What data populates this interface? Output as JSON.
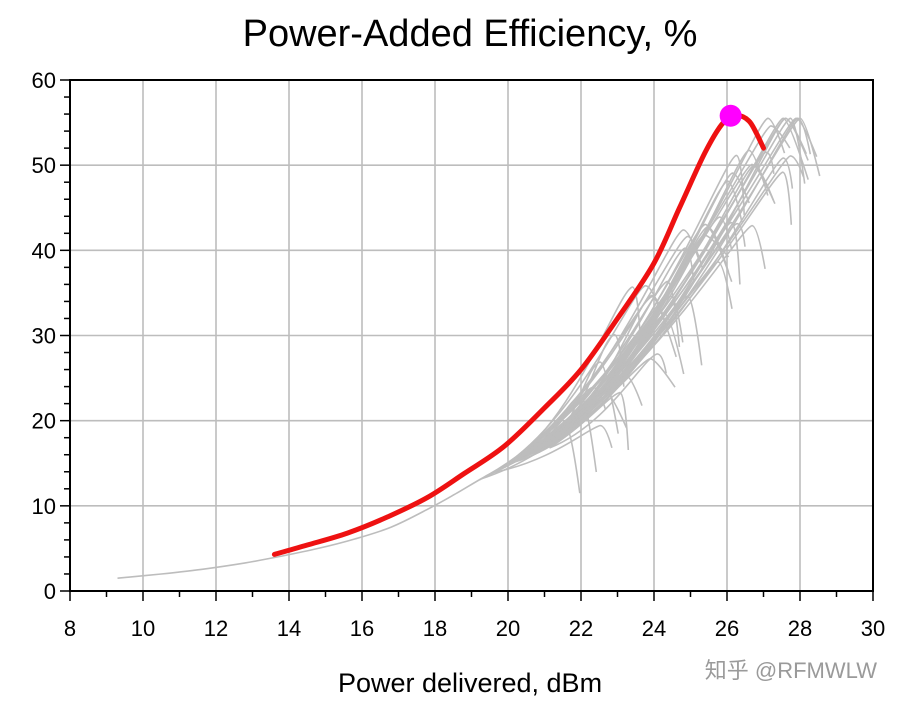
{
  "chart_data": {
    "type": "line",
    "title": "Power-Added Efficiency, %",
    "xlabel": "Power delivered, dBm",
    "ylabel": "",
    "xlim": [
      8,
      30
    ],
    "ylim": [
      0,
      60
    ],
    "x_ticks": [
      "8",
      "10",
      "12",
      "14",
      "16",
      "18",
      "20",
      "22",
      "24",
      "26",
      "28",
      "30"
    ],
    "y_ticks": [
      "0",
      "10",
      "20",
      "30",
      "40",
      "50",
      "60"
    ],
    "grid": true,
    "colors": {
      "sweep": "#bdbdbd",
      "highlight": "#ee1111",
      "marker": "#ff00ff"
    },
    "main_series": {
      "x": [
        13.6,
        14.5,
        15.6,
        16.7,
        17.8,
        18.8,
        19.9,
        21.0,
        22.0,
        23.0,
        24.0,
        24.7,
        25.4,
        25.9,
        26.3,
        26.6,
        26.8,
        27.0
      ],
      "y": [
        4.3,
        5.4,
        6.8,
        8.7,
        11.0,
        13.8,
        17.0,
        21.5,
        26.0,
        32.0,
        38.5,
        45.0,
        51.5,
        55.0,
        55.8,
        55.2,
        53.8,
        52.0
      ]
    },
    "marker": {
      "x": 26.1,
      "y": 55.8
    },
    "envelope_series": {
      "x": [
        9.3,
        10.5,
        11.7,
        12.8,
        13.8,
        14.8,
        15.8,
        16.8,
        17.8,
        18.6,
        19.4,
        20.2,
        21.0
      ],
      "y": [
        1.5,
        2.0,
        2.6,
        3.3,
        4.1,
        5.0,
        6.1,
        7.5,
        9.6,
        11.5,
        13.5,
        15.2,
        16.8
      ]
    },
    "sweep_family": {
      "count": 50,
      "start_x_range": [
        19.2,
        21.2
      ],
      "peak_x_range": [
        21.3,
        28.2
      ],
      "peak_y_range": [
        17.0,
        56.0
      ],
      "peak_y_spread": [
        -5.0,
        7.0
      ]
    }
  },
  "watermark": "知乎 @RFMWLW"
}
